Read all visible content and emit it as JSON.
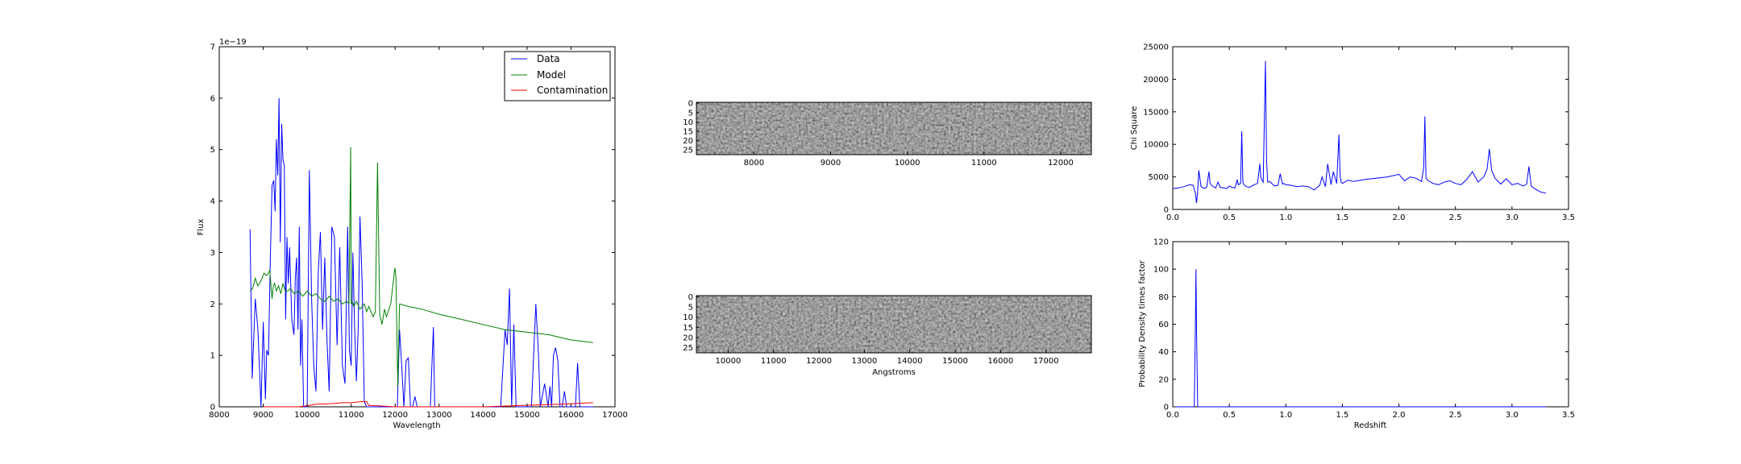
{
  "chart_data": [
    {
      "type": "line",
      "xlabel": "Wavelength",
      "ylabel": "Flux",
      "xlim": [
        8000,
        17000
      ],
      "ylim": [
        0,
        7
      ],
      "y_offset_label": "1e−19",
      "xticks": [
        8000,
        9000,
        10000,
        11000,
        12000,
        13000,
        14000,
        15000,
        16000,
        17000
      ],
      "yticks": [
        0,
        1,
        2,
        3,
        4,
        5,
        6,
        7
      ],
      "legend": {
        "placement": "top-right",
        "entries": [
          "Data",
          "Model",
          "Contamination"
        ]
      },
      "grid": false,
      "series": [
        {
          "name": "Data",
          "color": "#0000ff",
          "x": [
            8700,
            8750,
            8820,
            8880,
            8950,
            9000,
            9050,
            9080,
            9120,
            9160,
            9200,
            9240,
            9270,
            9300,
            9330,
            9360,
            9390,
            9420,
            9450,
            9480,
            9510,
            9540,
            9570,
            9600,
            9650,
            9700,
            9730,
            9760,
            9790,
            9820,
            9850,
            9880,
            9920,
            9960,
            10000,
            10050,
            10100,
            10150,
            10200,
            10250,
            10300,
            10350,
            10400,
            10450,
            10500,
            10560,
            10620,
            10680,
            10740,
            10800,
            10860,
            10920,
            10960,
            11000,
            11040,
            11080,
            11120,
            11160,
            11200,
            11250,
            11300,
            11350,
            11400,
            11600,
            11800,
            12050,
            12100,
            12150,
            12200,
            12250,
            12300,
            12350,
            12400,
            12450,
            12500,
            12550,
            12600,
            12700,
            12800,
            12870,
            12900,
            12950,
            13000,
            13500,
            14000,
            14400,
            14500,
            14550,
            14600,
            14650,
            14700,
            14750,
            14800,
            14850,
            14900,
            15000,
            15100,
            15200,
            15260,
            15300,
            15400,
            15480,
            15520,
            15560,
            15600,
            15650,
            15700,
            15750,
            15800,
            15850,
            15900,
            16000,
            16100,
            16150,
            16200,
            16250,
            16300,
            16500
          ],
          "y": [
            3.45,
            0.55,
            2.1,
            1.5,
            0.0,
            1.65,
            0.15,
            1.1,
            1.0,
            2.8,
            4.3,
            4.4,
            3.8,
            5.2,
            4.5,
            6.0,
            3.2,
            5.5,
            4.8,
            4.7,
            1.7,
            3.3,
            2.4,
            3.1,
            1.7,
            1.4,
            2.5,
            2.9,
            1.5,
            3.5,
            0.8,
            1.7,
            0.0,
            0.0,
            0.0,
            4.6,
            2.1,
            0.8,
            0.3,
            2.6,
            3.4,
            1.5,
            2.9,
            1.3,
            0.3,
            3.5,
            3.3,
            1.2,
            3.1,
            0.8,
            0.45,
            3.5,
            1.1,
            0.8,
            3.0,
            1.5,
            0.5,
            1.5,
            3.7,
            2.4,
            0.1,
            0.0,
            0.0,
            0.0,
            0.0,
            0.0,
            1.5,
            0.8,
            0.0,
            0.9,
            0.95,
            0.0,
            0.0,
            0.2,
            0.0,
            0.0,
            0.0,
            0.0,
            0.0,
            1.55,
            0.0,
            0.0,
            0.0,
            0.0,
            0.0,
            0.0,
            1.5,
            1.2,
            2.3,
            0.0,
            1.6,
            0.0,
            0.0,
            0.0,
            0.0,
            0.0,
            0.0,
            2.0,
            1.0,
            0.0,
            0.45,
            0.0,
            0.4,
            0.0,
            1.0,
            1.15,
            0.9,
            0.0,
            0.0,
            0.3,
            0.0,
            0.0,
            0.0,
            0.85,
            0.0,
            0.0,
            0.0,
            0.0
          ]
        },
        {
          "name": "Model",
          "color": "#008000",
          "x": [
            8700,
            8760,
            8820,
            8880,
            8950,
            9020,
            9080,
            9150,
            9200,
            9230,
            9260,
            9300,
            9350,
            9400,
            9450,
            9500,
            9560,
            9620,
            9700,
            9800,
            9900,
            10000,
            10100,
            10200,
            10300,
            10400,
            10500,
            10600,
            10700,
            10800,
            10900,
            10950,
            10990,
            11000,
            11020,
            11060,
            11120,
            11200,
            11300,
            11350,
            11400,
            11500,
            11550,
            11600,
            11650,
            11700,
            11760,
            11800,
            11900,
            11980,
            12000,
            12020,
            12060,
            12080,
            12100,
            12300,
            12600,
            13000,
            13500,
            14000,
            14500,
            15000,
            15500,
            16000,
            16500
          ],
          "y": [
            2.25,
            2.3,
            2.5,
            2.35,
            2.45,
            2.6,
            2.55,
            2.65,
            2.1,
            2.35,
            2.4,
            2.25,
            2.35,
            2.2,
            2.4,
            2.25,
            2.25,
            2.3,
            2.2,
            2.25,
            2.15,
            2.25,
            2.15,
            2.2,
            2.1,
            2.05,
            2.15,
            2.05,
            2.1,
            2.0,
            2.05,
            2.0,
            5.05,
            2.0,
            2.05,
            1.95,
            2.05,
            1.9,
            2.0,
            1.85,
            1.95,
            1.75,
            1.85,
            4.75,
            1.8,
            1.6,
            1.9,
            1.75,
            2.0,
            2.6,
            2.7,
            2.5,
            0.4,
            1.2,
            2.0,
            1.95,
            1.9,
            1.8,
            1.7,
            1.6,
            1.5,
            1.45,
            1.4,
            1.3,
            1.25
          ]
        },
        {
          "name": "Contamination",
          "color": "#ff0000",
          "x": [
            9000,
            9500,
            9800,
            10000,
            10200,
            10500,
            10800,
            11000,
            11200,
            11350,
            11400,
            12000,
            13000,
            14000,
            15000,
            16000,
            16500
          ],
          "y": [
            0.0,
            0.0,
            0.0,
            0.02,
            0.05,
            0.06,
            0.08,
            0.08,
            0.1,
            0.1,
            0.03,
            0.0,
            0.0,
            0.0,
            0.03,
            0.06,
            0.08
          ]
        }
      ]
    },
    {
      "type": "heatmap",
      "xlim": [
        7250,
        12400
      ],
      "xticks": [
        8000,
        9000,
        10000,
        11000,
        12000
      ],
      "yticks": [
        0,
        5,
        10,
        15,
        20,
        25
      ],
      "colormap": "gray",
      "rows": 28
    },
    {
      "type": "heatmap",
      "xlabel": "Angstroms",
      "xlim": [
        9300,
        18000
      ],
      "xticks": [
        10000,
        11000,
        12000,
        13000,
        14000,
        15000,
        16000,
        17000
      ],
      "yticks": [
        0,
        5,
        10,
        15,
        20,
        25
      ],
      "colormap": "gray",
      "rows": 28
    },
    {
      "type": "line",
      "ylabel": "Chi Square",
      "xlim": [
        0.0,
        3.5
      ],
      "ylim": [
        0,
        25000
      ],
      "xticks": [
        "0.0",
        "0.5",
        "1.0",
        "1.5",
        "2.0",
        "2.5",
        "3.0",
        "3.5"
      ],
      "yticks": [
        0,
        5000,
        10000,
        15000,
        20000,
        25000
      ],
      "series": [
        {
          "color": "#0000ff",
          "x": [
            0.0,
            0.05,
            0.1,
            0.15,
            0.18,
            0.2,
            0.21,
            0.22,
            0.23,
            0.25,
            0.28,
            0.3,
            0.32,
            0.33,
            0.35,
            0.38,
            0.4,
            0.42,
            0.45,
            0.48,
            0.5,
            0.52,
            0.55,
            0.57,
            0.58,
            0.6,
            0.61,
            0.62,
            0.63,
            0.65,
            0.68,
            0.7,
            0.72,
            0.75,
            0.77,
            0.78,
            0.8,
            0.82,
            0.83,
            0.84,
            0.86,
            0.88,
            0.9,
            0.93,
            0.95,
            0.97,
            0.98,
            1.0,
            1.05,
            1.1,
            1.15,
            1.2,
            1.25,
            1.3,
            1.32,
            1.35,
            1.37,
            1.4,
            1.42,
            1.45,
            1.47,
            1.48,
            1.49,
            1.5,
            1.55,
            1.6,
            1.7,
            1.8,
            1.9,
            2.0,
            2.05,
            2.1,
            2.15,
            2.2,
            2.22,
            2.23,
            2.24,
            2.26,
            2.3,
            2.35,
            2.4,
            2.45,
            2.5,
            2.55,
            2.6,
            2.65,
            2.7,
            2.75,
            2.78,
            2.8,
            2.82,
            2.85,
            2.9,
            2.95,
            3.0,
            3.05,
            3.1,
            3.13,
            3.15,
            3.17,
            3.2,
            3.25,
            3.3
          ],
          "y": [
            3200,
            3300,
            3500,
            3800,
            3700,
            2500,
            1000,
            2800,
            6000,
            3500,
            3200,
            3400,
            5800,
            4000,
            3600,
            3300,
            4200,
            3400,
            3300,
            3200,
            3600,
            3400,
            3300,
            4500,
            3800,
            4000,
            12000,
            4200,
            3800,
            3500,
            3400,
            3600,
            3800,
            4000,
            7000,
            4800,
            4200,
            22800,
            7500,
            4200,
            4300,
            3900,
            3600,
            3700,
            5500,
            3900,
            4000,
            3800,
            3700,
            3500,
            3600,
            3500,
            3000,
            3700,
            5000,
            3500,
            7000,
            3800,
            5800,
            4000,
            11500,
            5200,
            4200,
            4000,
            4500,
            4300,
            4600,
            4800,
            5000,
            5400,
            4400,
            5000,
            4800,
            4300,
            6500,
            14300,
            4800,
            4400,
            4000,
            3800,
            4200,
            4400,
            4000,
            3800,
            4600,
            5800,
            4200,
            5000,
            6200,
            9300,
            6000,
            4800,
            3900,
            4700,
            3800,
            4000,
            3600,
            3900,
            6600,
            3600,
            3200,
            2700,
            2500
          ]
        }
      ]
    },
    {
      "type": "line",
      "xlabel": "Redshift",
      "ylabel": "Probability Density times factor",
      "xlim": [
        0.0,
        3.5
      ],
      "ylim": [
        0,
        120
      ],
      "xticks": [
        "0.0",
        "0.5",
        "1.0",
        "1.5",
        "2.0",
        "2.5",
        "3.0",
        "3.5"
      ],
      "yticks": [
        0,
        20,
        40,
        60,
        80,
        100,
        120
      ],
      "series": [
        {
          "color": "#0000ff",
          "x": [
            0.0,
            0.19,
            0.2,
            0.205,
            0.21,
            0.22,
            3.3
          ],
          "y": [
            0,
            0,
            60,
            100,
            55,
            0,
            0
          ]
        }
      ]
    }
  ]
}
